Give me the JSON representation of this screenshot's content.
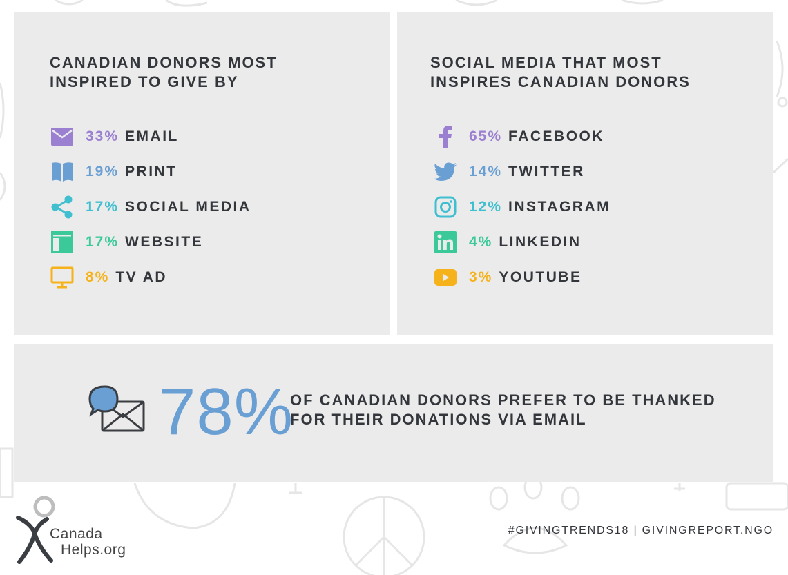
{
  "colors": {
    "panel_bg": "#ebebeb",
    "heading": "#33363b",
    "purple": "#9b7fd1",
    "blue": "#6a9fd3",
    "teal": "#3fbfcf",
    "green": "#3cc99a",
    "yellow": "#f6b21a"
  },
  "left_panel": {
    "title": "CANADIAN DONORS MOST INSPIRED TO GIVE BY",
    "items": [
      {
        "value": "33%",
        "label": "EMAIL",
        "icon": "email-icon",
        "color": "#9b7fd1"
      },
      {
        "value": "19%",
        "label": "PRINT",
        "icon": "book-icon",
        "color": "#6a9fd3"
      },
      {
        "value": "17%",
        "label": "SOCIAL MEDIA",
        "icon": "share-icon",
        "color": "#3fbfcf"
      },
      {
        "value": "17%",
        "label": "WEBSITE",
        "icon": "website-icon",
        "color": "#3cc99a"
      },
      {
        "value": "8%",
        "label": "TV AD",
        "icon": "monitor-icon",
        "color": "#f6b21a"
      }
    ]
  },
  "right_panel": {
    "title": "SOCIAL MEDIA THAT MOST INSPIRES CANADIAN DONORS",
    "items": [
      {
        "value": "65%",
        "label": "FACEBOOK",
        "icon": "facebook-icon",
        "color": "#9b7fd1"
      },
      {
        "value": "14%",
        "label": "TWITTER",
        "icon": "twitter-icon",
        "color": "#6a9fd3"
      },
      {
        "value": "12%",
        "label": "INSTAGRAM",
        "icon": "instagram-icon",
        "color": "#3fbfcf"
      },
      {
        "value": "4%",
        "label": "LINKEDIN",
        "icon": "linkedin-icon",
        "color": "#3cc99a"
      },
      {
        "value": "3%",
        "label": "YOUTUBE",
        "icon": "youtube-icon",
        "color": "#f6b21a"
      }
    ]
  },
  "highlight": {
    "value": "78%",
    "text": "OF CANADIAN DONORS PREFER TO BE THANKED FOR THEIR DONATIONS VIA EMAIL",
    "icon": "chat-envelope-icon"
  },
  "logo": {
    "line1": "Canada",
    "line2": "Helps.org"
  },
  "footer": "#GIVINGTRENDS18 | GIVINGREPORT.NGO",
  "chart_data": [
    {
      "type": "table",
      "title": "CANADIAN DONORS MOST INSPIRED TO GIVE BY",
      "categories": [
        "EMAIL",
        "PRINT",
        "SOCIAL MEDIA",
        "WEBSITE",
        "TV AD"
      ],
      "values": [
        33,
        19,
        17,
        17,
        8
      ],
      "unit": "%"
    },
    {
      "type": "table",
      "title": "SOCIAL MEDIA THAT MOST INSPIRES CANADIAN DONORS",
      "categories": [
        "FACEBOOK",
        "TWITTER",
        "INSTAGRAM",
        "LINKEDIN",
        "YOUTUBE"
      ],
      "values": [
        65,
        14,
        12,
        4,
        3
      ],
      "unit": "%"
    }
  ]
}
